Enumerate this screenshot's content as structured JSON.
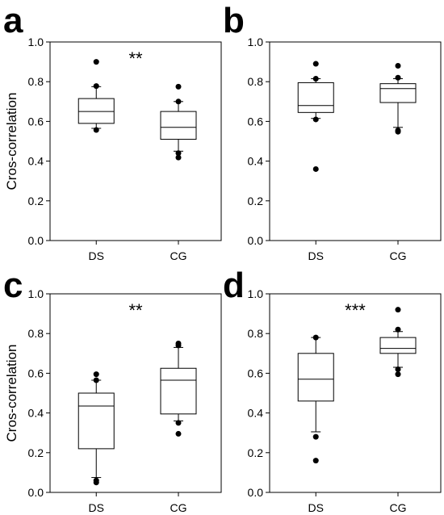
{
  "chart_data": [
    {
      "panel": "a",
      "type": "box",
      "ylabel": "Cros-correlation",
      "ylim": [
        0,
        1.0
      ],
      "yticks": [
        "0.0",
        "0.2",
        "0.4",
        "0.6",
        "0.8",
        "1.0"
      ],
      "categories": [
        "DS",
        "CG"
      ],
      "significance": "**",
      "boxes": [
        {
          "category": "DS",
          "whisker_low": 0.565,
          "q1": 0.59,
          "median": 0.65,
          "q3": 0.715,
          "whisker_high": 0.775,
          "outliers": [
            0.9,
            0.778,
            0.557
          ]
        },
        {
          "category": "CG",
          "whisker_low": 0.45,
          "q1": 0.51,
          "median": 0.57,
          "q3": 0.65,
          "whisker_high": 0.7,
          "outliers": [
            0.775,
            0.7,
            0.44,
            0.418
          ]
        }
      ]
    },
    {
      "panel": "b",
      "type": "box",
      "ylabel": "",
      "ylim": [
        0,
        1.0
      ],
      "yticks": [
        "0.0",
        "0.2",
        "0.4",
        "0.6",
        "0.8",
        "1.0"
      ],
      "categories": [
        "DS",
        "CG"
      ],
      "significance": "",
      "boxes": [
        {
          "category": "DS",
          "whisker_low": 0.615,
          "q1": 0.645,
          "median": 0.68,
          "q3": 0.795,
          "whisker_high": 0.815,
          "outliers": [
            0.89,
            0.815,
            0.61,
            0.36
          ]
        },
        {
          "category": "CG",
          "whisker_low": 0.57,
          "q1": 0.695,
          "median": 0.765,
          "q3": 0.79,
          "whisker_high": 0.815,
          "outliers": [
            0.88,
            0.82,
            0.555,
            0.548
          ]
        }
      ]
    },
    {
      "panel": "c",
      "type": "box",
      "ylabel": "Cros-correlation",
      "ylim": [
        0,
        1.0
      ],
      "yticks": [
        "0.0",
        "0.2",
        "0.4",
        "0.6",
        "0.8",
        "1.0"
      ],
      "categories": [
        "DS",
        "CG"
      ],
      "significance": "**",
      "boxes": [
        {
          "category": "DS",
          "whisker_low": 0.075,
          "q1": 0.22,
          "median": 0.435,
          "q3": 0.5,
          "whisker_high": 0.565,
          "outliers": [
            0.595,
            0.565,
            0.06,
            0.05
          ]
        },
        {
          "category": "CG",
          "whisker_low": 0.36,
          "q1": 0.395,
          "median": 0.565,
          "q3": 0.625,
          "whisker_high": 0.73,
          "outliers": [
            0.75,
            0.74,
            0.35,
            0.295
          ]
        }
      ]
    },
    {
      "panel": "d",
      "type": "box",
      "ylabel": "",
      "ylim": [
        0,
        1.0
      ],
      "yticks": [
        "0.0",
        "0.2",
        "0.4",
        "0.6",
        "0.8",
        "1.0"
      ],
      "categories": [
        "DS",
        "CG"
      ],
      "significance": "***",
      "boxes": [
        {
          "category": "DS",
          "whisker_low": 0.305,
          "q1": 0.46,
          "median": 0.57,
          "q3": 0.7,
          "whisker_high": 0.78,
          "outliers": [
            0.78,
            0.28,
            0.16
          ]
        },
        {
          "category": "CG",
          "whisker_low": 0.63,
          "q1": 0.7,
          "median": 0.725,
          "q3": 0.78,
          "whisker_high": 0.81,
          "outliers": [
            0.92,
            0.82,
            0.62,
            0.595
          ]
        }
      ]
    }
  ]
}
